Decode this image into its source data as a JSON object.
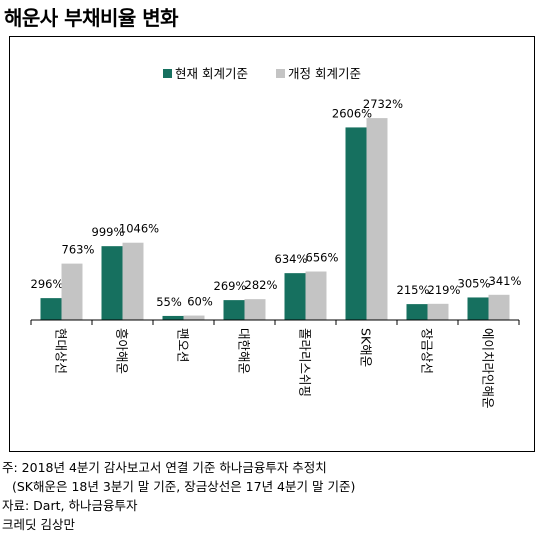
{
  "title": "해운사 부채비율 변화",
  "legend": {
    "current": "현재 회계기준",
    "revised": "개정 회계기준"
  },
  "colors": {
    "current": "#16705f",
    "revised": "#c4c4c4"
  },
  "chart_data": {
    "type": "bar",
    "categories": [
      "현대상선",
      "흥아해운",
      "팬오션",
      "대한해운",
      "폴라리스쉬핑",
      "SK해운",
      "장금상선",
      "에이치라인해운"
    ],
    "series": [
      {
        "name": "현재 회계기준",
        "values": [
          296,
          999,
          55,
          269,
          634,
          2606,
          215,
          305
        ],
        "labels": [
          "296%",
          "999%",
          "55%",
          "269%",
          "634%",
          "2606%",
          "215%",
          "305%"
        ]
      },
      {
        "name": "개정 회계기준",
        "values": [
          763,
          1046,
          60,
          282,
          656,
          2732,
          219,
          341
        ],
        "labels": [
          "763%",
          "1046%",
          "60%",
          "282%",
          "656%",
          "2732%",
          "219%",
          "341%"
        ]
      }
    ],
    "ylim": [
      0,
      2950
    ],
    "grid": false,
    "legend_position": "top-right"
  },
  "notes": [
    "주: 2018년 4분기 감사보고서 연결 기준 하나금융투자 추정치",
    "(SK해운은 18년 3분기 말 기준, 장금상선은 17년 4분기 말 기준)",
    "자료: Dart, 하나금융투자",
    "크레딧 김상만"
  ]
}
